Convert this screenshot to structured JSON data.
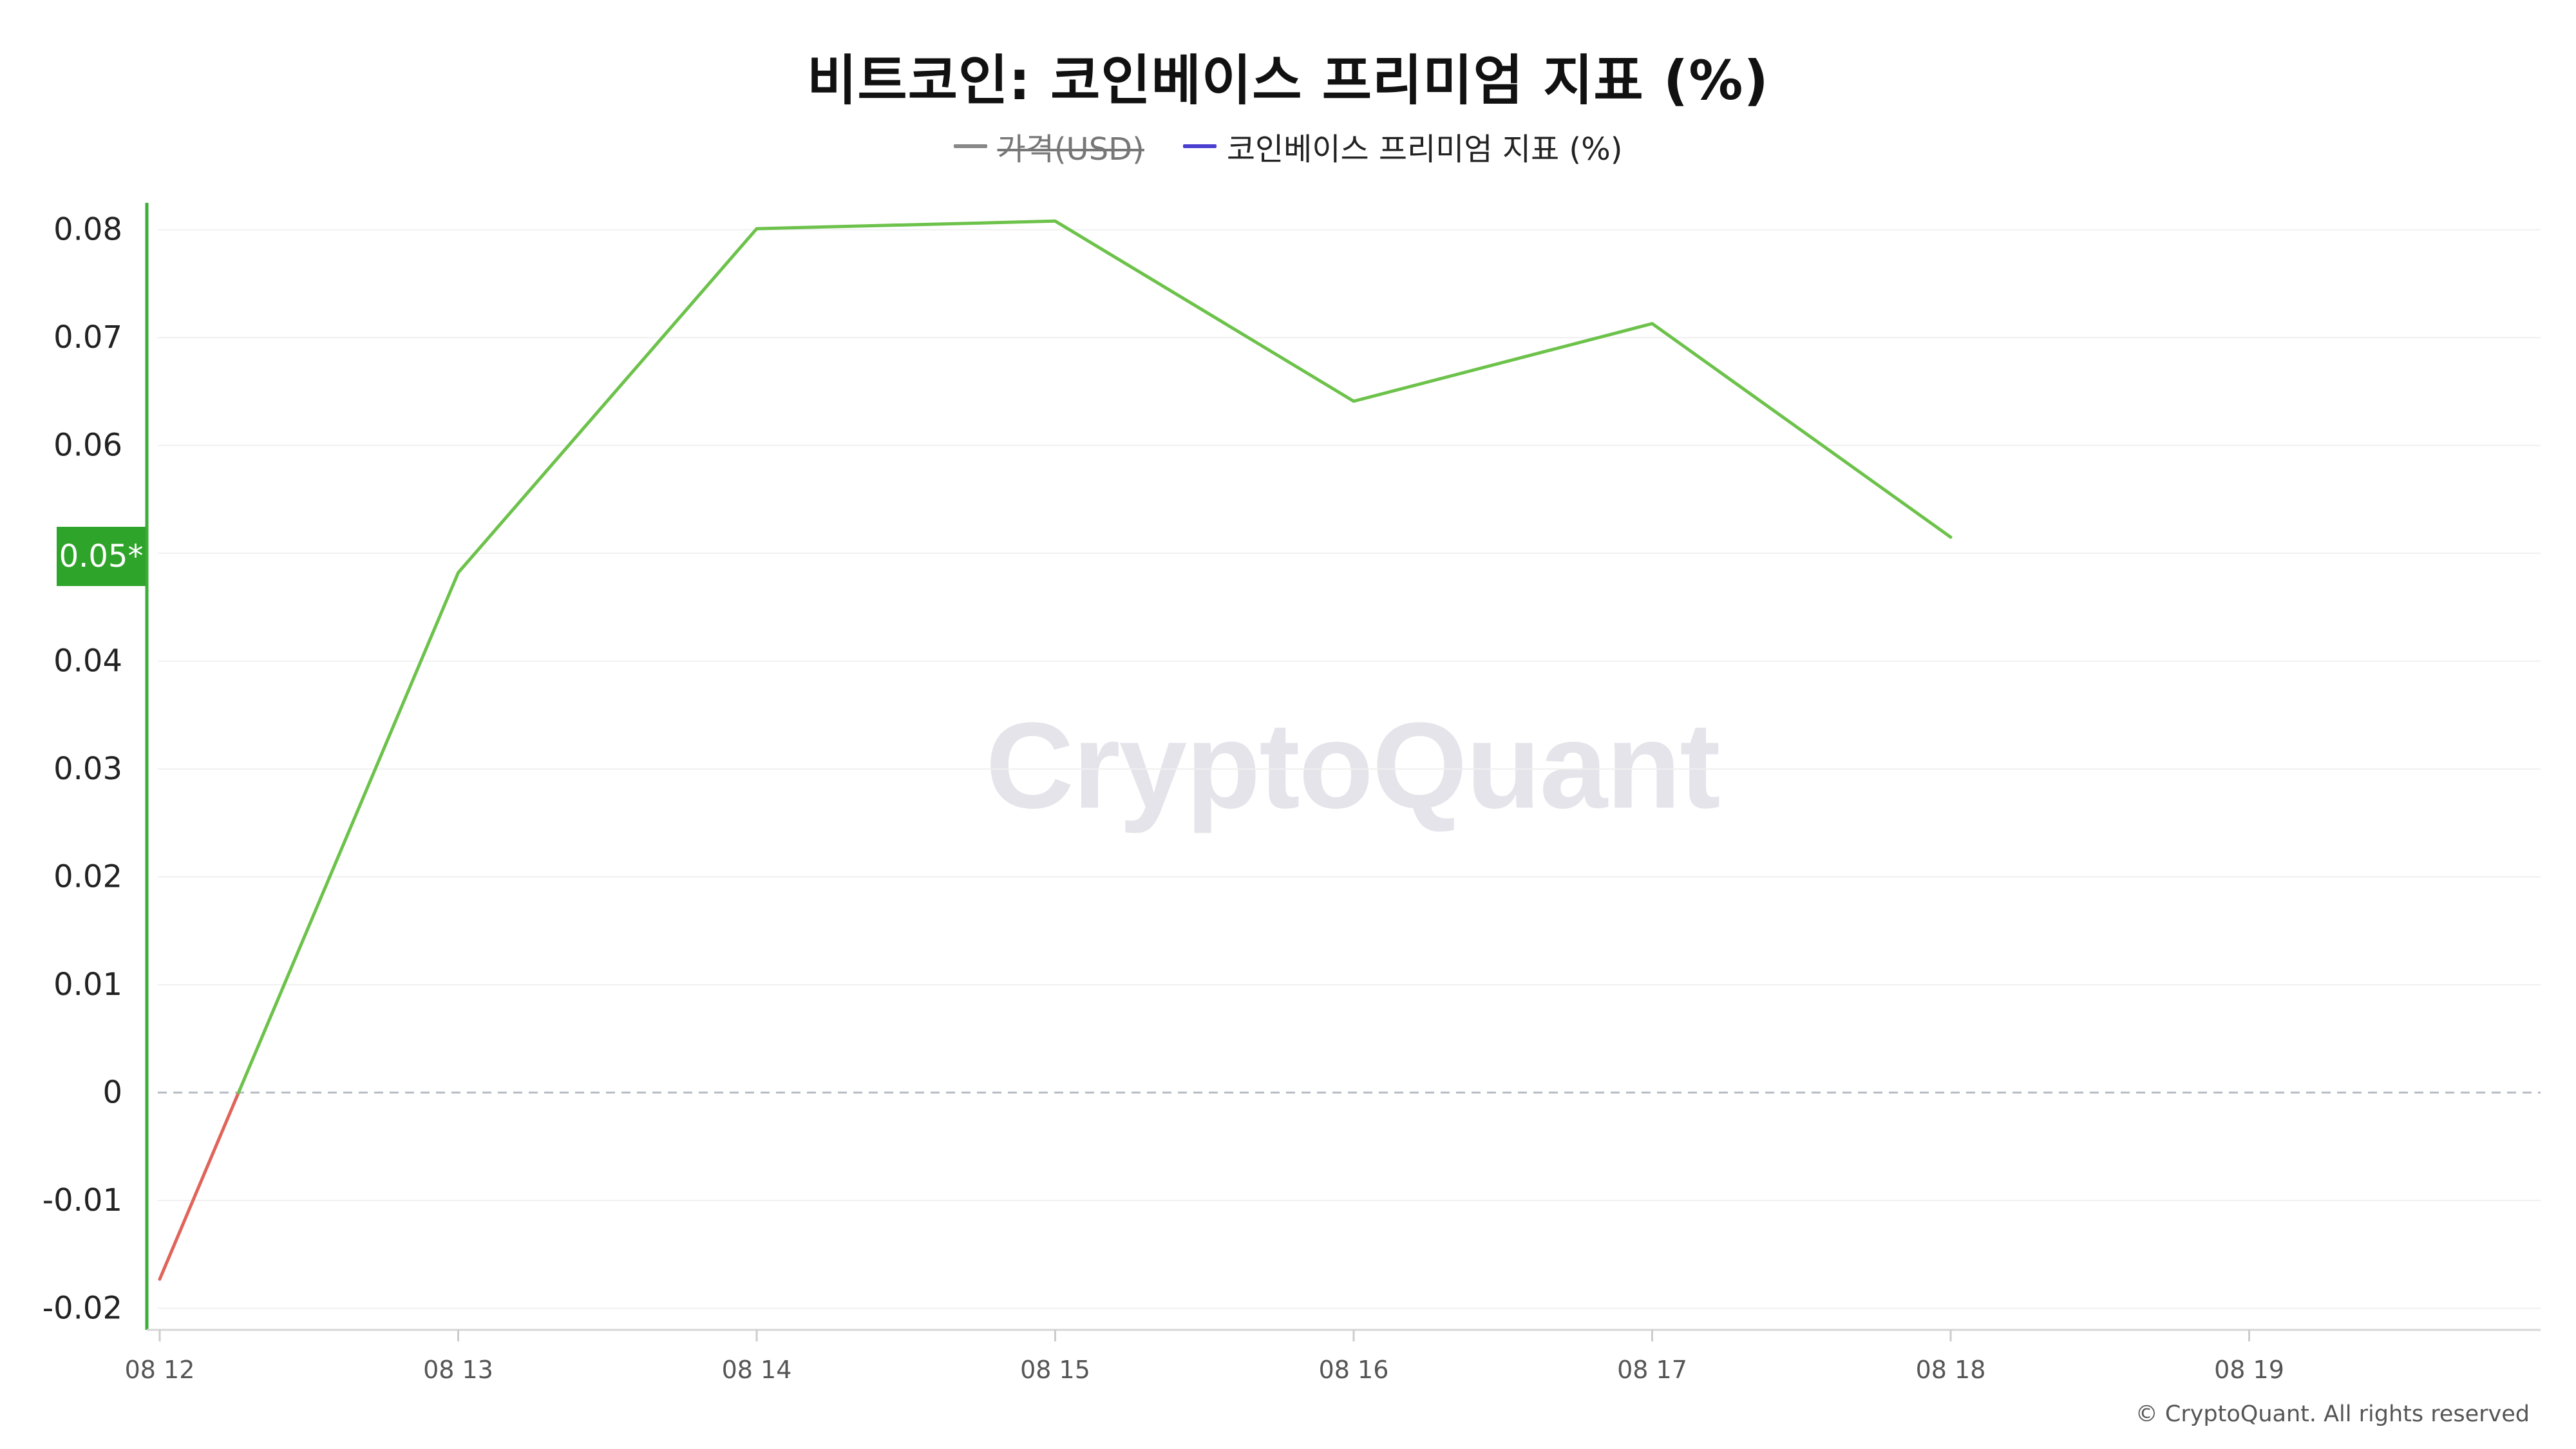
{
  "chart_data": {
    "type": "line",
    "title": "비트코인: 코인베이스 프리미엄 지표 (%)",
    "xlabel": "",
    "ylabel": "",
    "categories": [
      "08 12",
      "08 13",
      "08 14",
      "08 15",
      "08 16",
      "08 17",
      "08 18",
      "08 19"
    ],
    "x_tick_labels": [
      "08 12",
      "08 13",
      "08 14",
      "08 15",
      "08 16",
      "08 17",
      "08 18",
      "08 19"
    ],
    "y_tick_labels": [
      "0.08",
      "0.07",
      "0.06",
      "0.05",
      "0.04",
      "0.03",
      "0.02",
      "0.01",
      "0",
      "-0.01",
      "-0.02"
    ],
    "ylim": [
      -0.022,
      0.081
    ],
    "series": [
      {
        "name": "코인베이스 프리미엄 지표 (%)",
        "values": [
          -0.0173,
          0.0482,
          0.0801,
          0.0808,
          0.0641,
          0.0713,
          0.0515,
          null
        ]
      }
    ],
    "legend": [
      {
        "label": "가격(USD)",
        "color": "#888888",
        "disabled": true
      },
      {
        "label": "코인베이스 프리미엄 지표 (%)",
        "color": "#4b3fd1",
        "disabled": false
      }
    ],
    "legend_position": "top-center",
    "current_value_label": "0.05*",
    "grid": true,
    "zero_reference_line": true
  },
  "watermark": "CryptoQuant",
  "copyright": "© CryptoQuant. All rights reserved",
  "colors": {
    "positive_line": "#6cc24a",
    "negative_line": "#e0645a",
    "axis_accent": "#3cae38",
    "badge_bg": "#2ea42a",
    "zero_line": "#b8bcc6",
    "grid": "#f0f0f0"
  }
}
